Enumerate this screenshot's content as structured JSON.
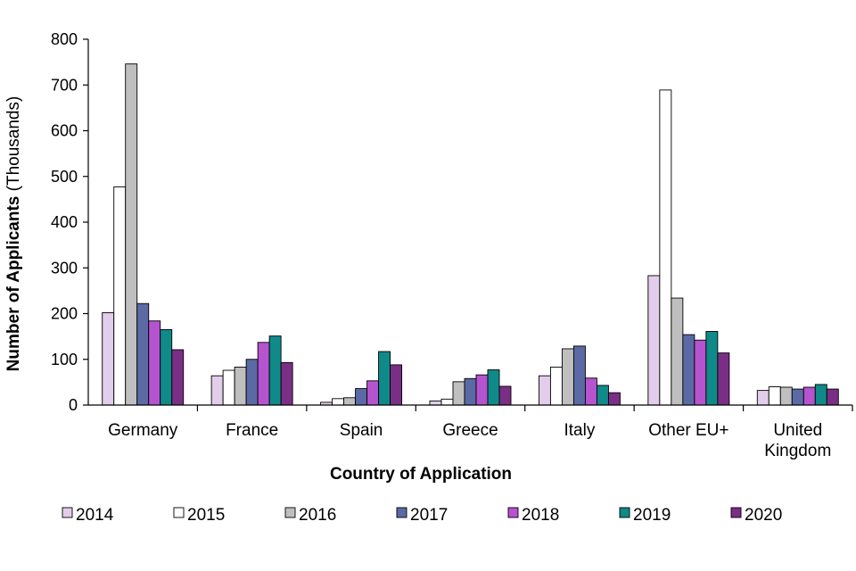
{
  "chart_data": {
    "type": "bar",
    "xlabel": "Country of Application",
    "ylabel_bold": "Number of Applicants",
    "ylabel_unit": "(Thousands)",
    "ylim": [
      0,
      800
    ],
    "yticks": [
      "0",
      "100",
      "200",
      "300",
      "400",
      "500",
      "600",
      "700",
      "800"
    ],
    "categories": [
      "Germany",
      "France",
      "Spain",
      "Greece",
      "Italy",
      "Other EU+",
      "United Kingdom"
    ],
    "category_lines": [
      [
        "Germany"
      ],
      [
        "France"
      ],
      [
        "Spain"
      ],
      [
        "Greece"
      ],
      [
        "Italy"
      ],
      [
        "Other EU+"
      ],
      [
        "United",
        "Kingdom"
      ]
    ],
    "series": [
      {
        "name": "2014",
        "color": "#e2cdea",
        "values": [
          202,
          64,
          6,
          9,
          64,
          283,
          32
        ]
      },
      {
        "name": "2015",
        "color": "#ffffff",
        "values": [
          477,
          76,
          14,
          13,
          83,
          689,
          40
        ]
      },
      {
        "name": "2016",
        "color": "#bfbfbf",
        "values": [
          746,
          83,
          16,
          51,
          123,
          234,
          39
        ]
      },
      {
        "name": "2017",
        "color": "#5b6aa5",
        "values": [
          222,
          100,
          36,
          58,
          129,
          154,
          35
        ]
      },
      {
        "name": "2018",
        "color": "#b653cf",
        "values": [
          184,
          137,
          53,
          66,
          59,
          142,
          39
        ]
      },
      {
        "name": "2019",
        "color": "#0f8a89",
        "values": [
          165,
          151,
          117,
          77,
          43,
          161,
          45
        ]
      },
      {
        "name": "2020",
        "color": "#7a2e85",
        "values": [
          121,
          93,
          88,
          41,
          27,
          114,
          35
        ]
      }
    ],
    "grid": false,
    "legend_position": "bottom"
  }
}
